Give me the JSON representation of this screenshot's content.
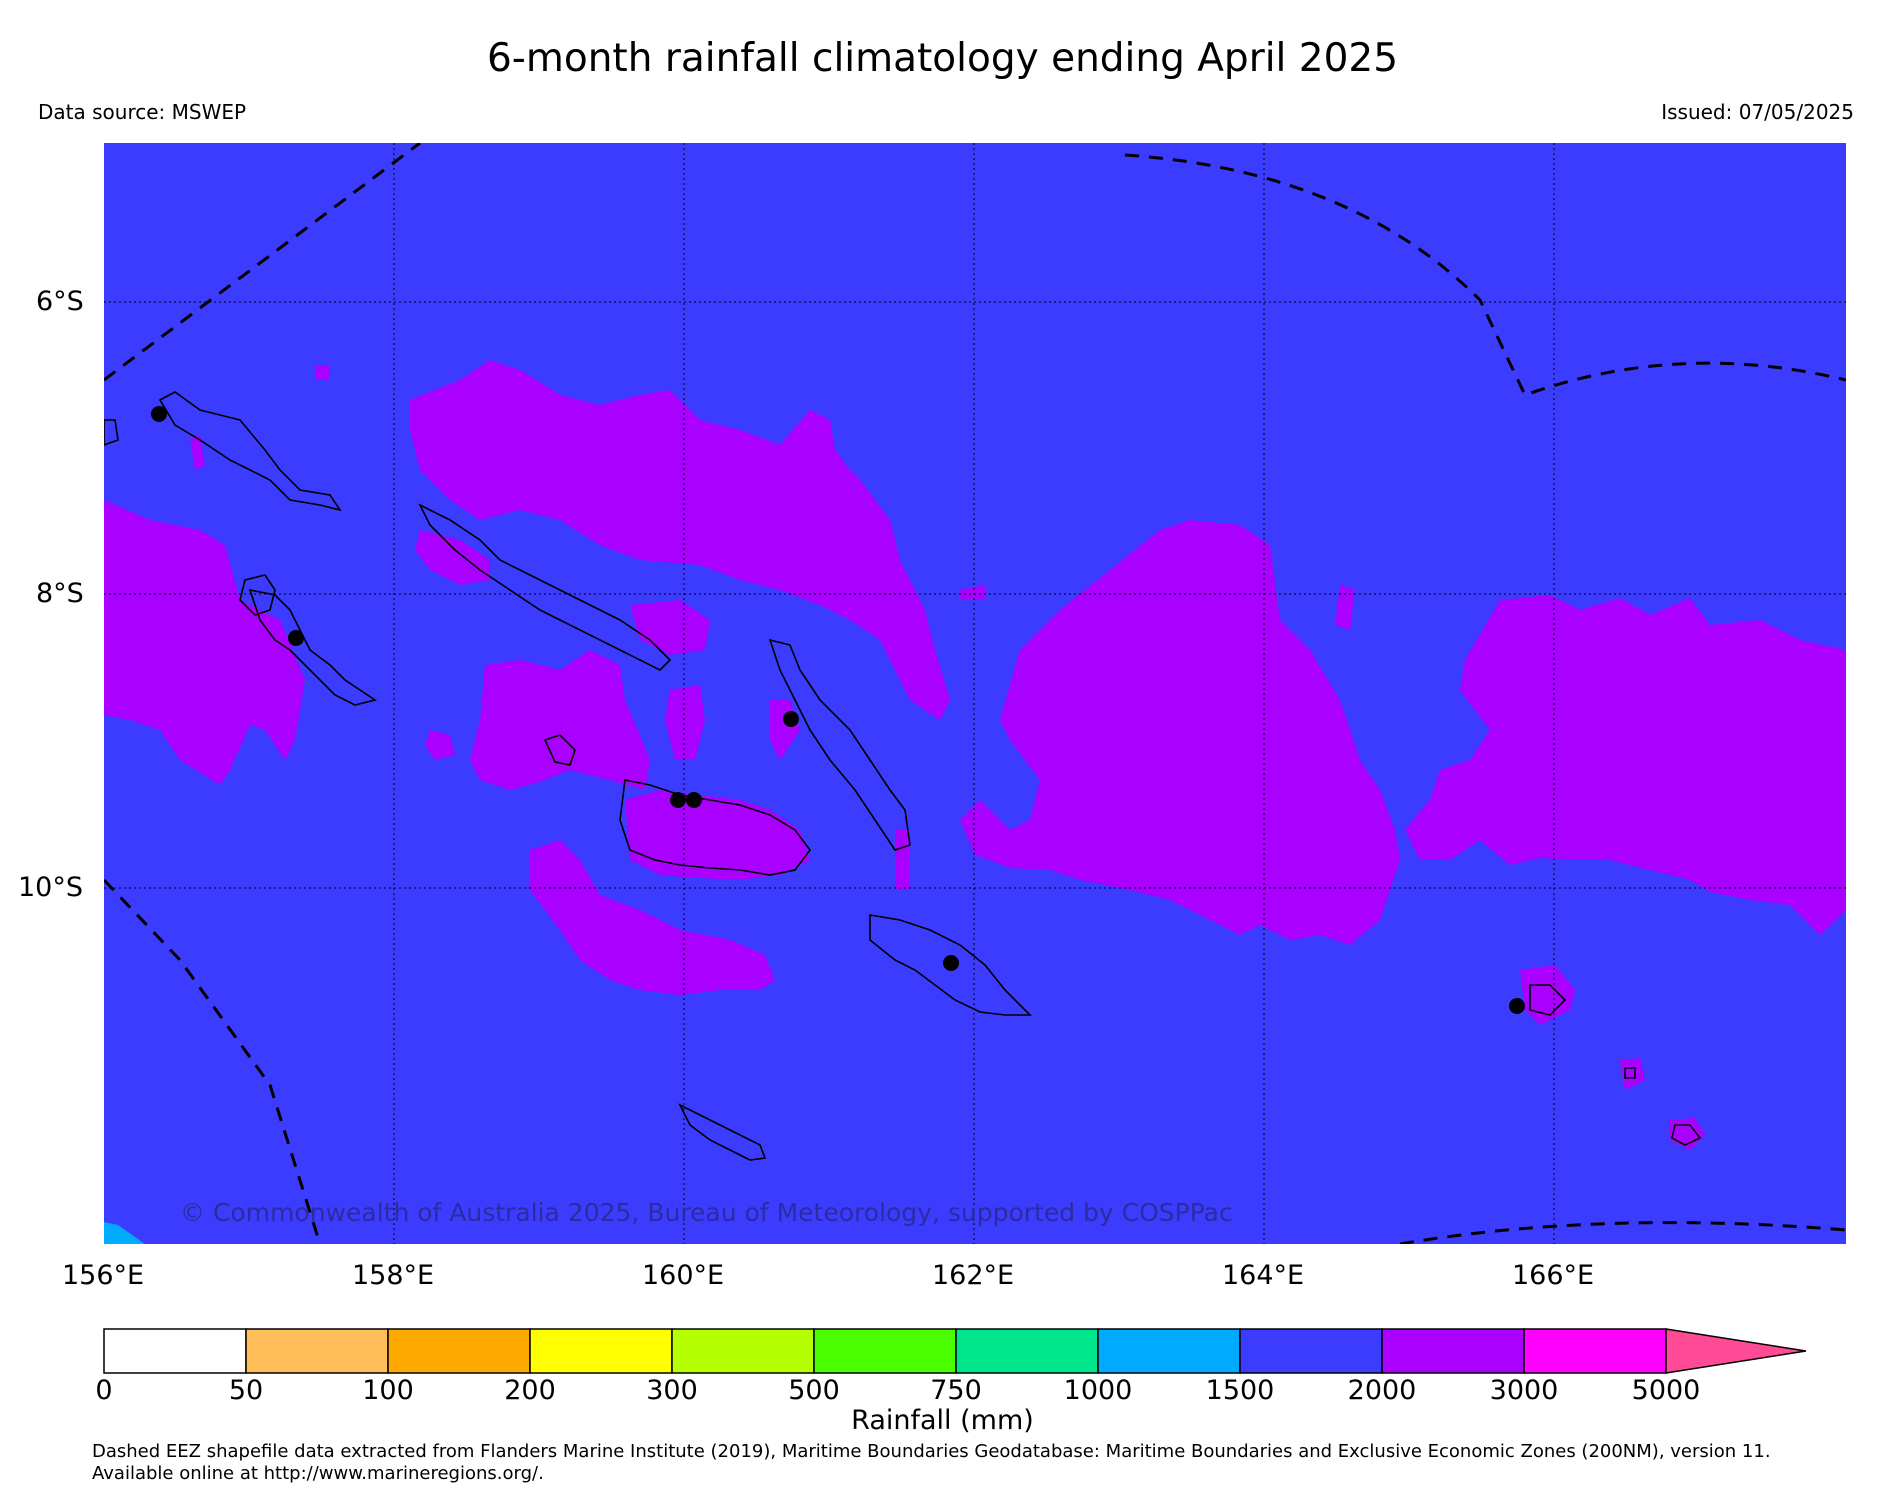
{
  "title": "6-month rainfall climatology ending April 2025",
  "data_source": "Data source: MSWEP",
  "issued": "Issued: 07/05/2025",
  "credit": "© Commonwealth of Australia 2025, Bureau of Meteorology, supported by COSPPac",
  "map": {
    "background_color": "#3c3cff",
    "lat_labels": [
      "6°S",
      "8°S",
      "10°S"
    ],
    "lon_labels": [
      "156°E",
      "158°E",
      "160°E",
      "162°E",
      "164°E",
      "166°E"
    ],
    "grid": "dotted"
  },
  "colorbar": {
    "label": "Rainfall (mm)",
    "ticks": [
      "0",
      "50",
      "100",
      "200",
      "300",
      "500",
      "750",
      "1000",
      "1500",
      "2000",
      "3000",
      "5000"
    ],
    "colors": [
      "#ffffff",
      "#ffbe5a",
      "#ffaa00",
      "#ffff00",
      "#b4ff00",
      "#4cff00",
      "#00e68c",
      "#00aaff",
      "#3c3cff",
      "#aa00ff",
      "#ff00ff",
      "#ff4b96"
    ]
  },
  "footnote": {
    "line1": "Dashed EEZ shapefile data extracted from Flanders Marine Institute (2019), Maritime Boundaries Geodatabase: Maritime Boundaries and Exclusive Economic Zones (200NM), version 11.",
    "line2": "Available online at http://www.marineregions.org/."
  }
}
